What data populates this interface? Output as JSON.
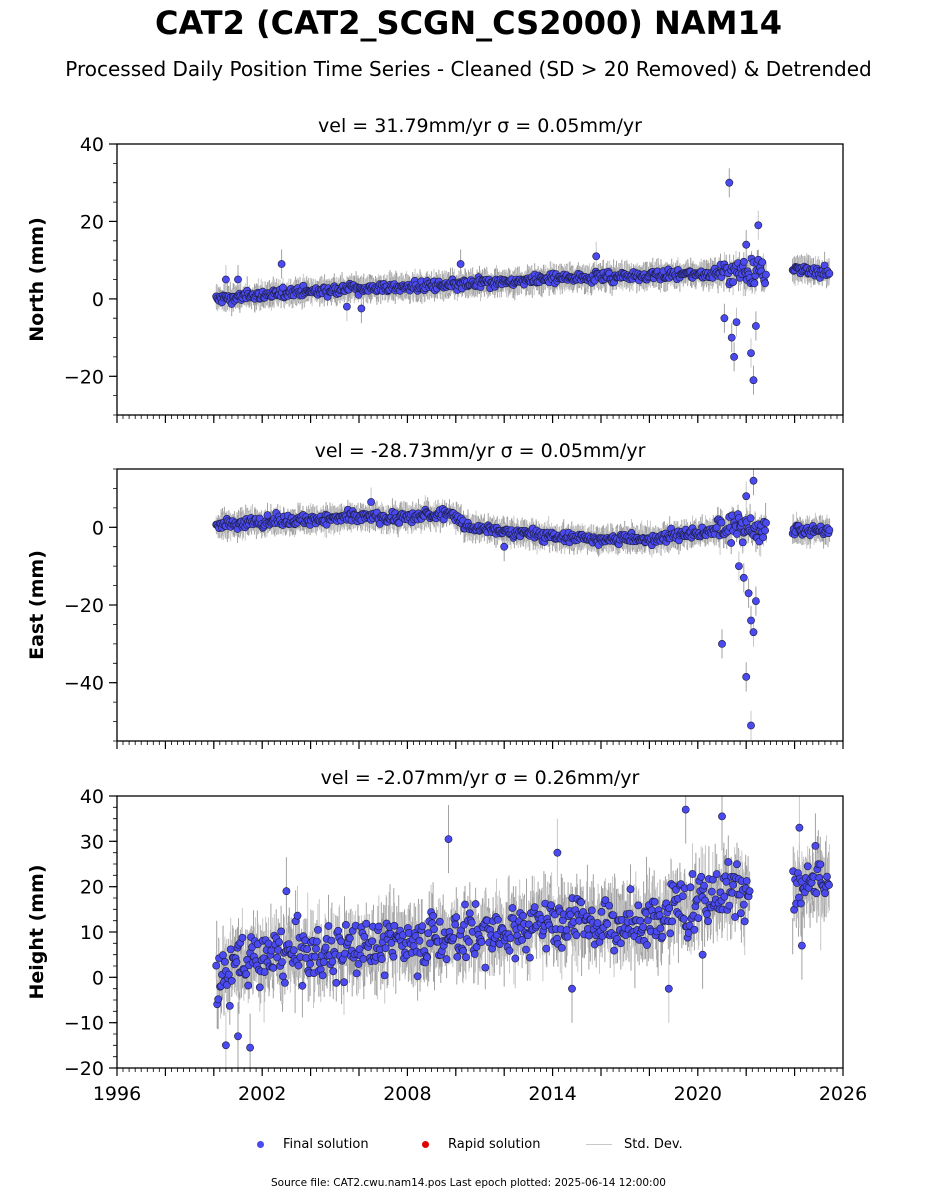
{
  "title": "CAT2 (CAT2_SCGN_CS2000) NAM14",
  "subtitle": "Processed Daily Position Time Series - Cleaned (SD > 20 Removed) & Detrended",
  "legend": {
    "final": "Final solution",
    "rapid": "Rapid solution",
    "std": "Std. Dev."
  },
  "source_line": "Source file: CAT2.cwu.nam14.pos  Last epoch plotted: 2025-06-14 12:00:00",
  "colors": {
    "final": "#4a4af0",
    "rapid": "#e00000",
    "std": "#c8c8c8"
  },
  "chart_data": [
    {
      "type": "scatter",
      "title": "vel = 31.79mm/yr   σ = 0.05mm/yr",
      "ylabel": "North (mm)",
      "xlim": [
        1996,
        2026
      ],
      "ylim": [
        -30,
        40
      ],
      "yticks": [
        -20,
        0,
        20,
        40
      ],
      "ytick_labels": [
        "−20",
        "0",
        "20",
        "40"
      ],
      "gaps": [
        [
          2022.85,
          2023.9
        ]
      ],
      "trend": [
        [
          2000.1,
          0.0
        ],
        [
          2005.0,
          2.5
        ],
        [
          2010.0,
          3.5
        ],
        [
          2015.0,
          5.5
        ],
        [
          2020.0,
          6.5
        ],
        [
          2022.8,
          7.0
        ],
        [
          2023.9,
          7.5
        ],
        [
          2025.45,
          7.0
        ]
      ],
      "noise": 0.9,
      "err": 2.5,
      "outliers": [
        [
          2000.5,
          5
        ],
        [
          2001.0,
          5
        ],
        [
          2002.8,
          9
        ],
        [
          2005.5,
          -2
        ],
        [
          2006.1,
          -2.5
        ],
        [
          2010.2,
          9
        ],
        [
          2015.8,
          11
        ],
        [
          2021.3,
          30
        ],
        [
          2021.1,
          -5
        ],
        [
          2021.6,
          -6
        ],
        [
          2021.4,
          -10
        ],
        [
          2021.5,
          -15
        ],
        [
          2022.2,
          -14
        ],
        [
          2022.3,
          -21
        ],
        [
          2022.4,
          -7
        ],
        [
          2022.5,
          19
        ],
        [
          2022.0,
          14
        ]
      ]
    },
    {
      "type": "scatter",
      "title": "vel = -28.73mm/yr   σ = 0.05mm/yr",
      "ylabel": "East (mm)",
      "xlim": [
        1996,
        2026
      ],
      "ylim": [
        -55,
        15
      ],
      "yticks": [
        -40,
        -20,
        0
      ],
      "ytick_labels": [
        "−40",
        "−20",
        "0"
      ],
      "gaps": [
        [
          2022.85,
          2023.9
        ]
      ],
      "trend": [
        [
          2000.1,
          0.5
        ],
        [
          2002.0,
          1.5
        ],
        [
          2004.0,
          2.0
        ],
        [
          2006.0,
          2.5
        ],
        [
          2008.0,
          2.5
        ],
        [
          2009.8,
          3.5
        ],
        [
          2010.5,
          0.0
        ],
        [
          2012.0,
          -1.0
        ],
        [
          2014.0,
          -2.5
        ],
        [
          2016.0,
          -3.0
        ],
        [
          2018.0,
          -3.0
        ],
        [
          2020.0,
          -1.5
        ],
        [
          2021.5,
          0.5
        ],
        [
          2022.5,
          -1.0
        ],
        [
          2023.9,
          -1.0
        ],
        [
          2025.45,
          -0.5
        ]
      ],
      "noise": 1.0,
      "err": 2.5,
      "outliers": [
        [
          2006.5,
          6.5
        ],
        [
          2012.0,
          -5
        ],
        [
          2021.0,
          -30
        ],
        [
          2021.7,
          -10
        ],
        [
          2021.9,
          -13
        ],
        [
          2022.0,
          -38.5
        ],
        [
          2022.2,
          -51
        ],
        [
          2022.3,
          12
        ],
        [
          2022.2,
          -24
        ],
        [
          2022.3,
          -27
        ],
        [
          2022.4,
          -19
        ],
        [
          2022.1,
          -17
        ],
        [
          2022.0,
          8
        ]
      ]
    },
    {
      "type": "scatter",
      "title": "vel = -2.07mm/yr   σ = 0.26mm/yr",
      "ylabel": "Height (mm)",
      "xlim": [
        1996,
        2026
      ],
      "ylim": [
        -20,
        40
      ],
      "xticks": [
        1996,
        2002,
        2008,
        2014,
        2020,
        2026
      ],
      "yticks": [
        -20,
        -10,
        0,
        10,
        20,
        30,
        40
      ],
      "ytick_labels": [
        "−20",
        "−10",
        "0",
        "10",
        "20",
        "30",
        "40"
      ],
      "gaps": [
        [
          2022.15,
          2023.9
        ]
      ],
      "trend": [
        [
          2000.1,
          0.0
        ],
        [
          2001.0,
          3.0
        ],
        [
          2003.0,
          5.0
        ],
        [
          2006.0,
          6.0
        ],
        [
          2008.0,
          8.0
        ],
        [
          2010.0,
          8.5
        ],
        [
          2012.0,
          10.0
        ],
        [
          2014.0,
          12.0
        ],
        [
          2016.0,
          13.0
        ],
        [
          2018.0,
          12.0
        ],
        [
          2019.5,
          16.0
        ],
        [
          2021.0,
          19.0
        ],
        [
          2022.1,
          20.0
        ],
        [
          2023.9,
          18.0
        ],
        [
          2025.45,
          22.0
        ]
      ],
      "noise": 4.5,
      "err": 5.0,
      "outliers": [
        [
          2009.7,
          30.5
        ],
        [
          2019.5,
          37
        ],
        [
          2014.2,
          27.5
        ],
        [
          2021.0,
          35.5
        ],
        [
          2020.2,
          5
        ],
        [
          2000.5,
          -15
        ],
        [
          2001.0,
          -13
        ],
        [
          2001.5,
          -15.5
        ],
        [
          2018.8,
          -2.5
        ],
        [
          2014.8,
          -2.5
        ],
        [
          2003.0,
          19
        ],
        [
          2024.2,
          33
        ],
        [
          2024.3,
          7
        ]
      ]
    }
  ]
}
